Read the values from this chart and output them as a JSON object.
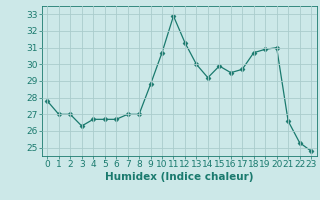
{
  "x": [
    0,
    1,
    2,
    3,
    4,
    5,
    6,
    7,
    8,
    9,
    10,
    11,
    12,
    13,
    14,
    15,
    16,
    17,
    18,
    19,
    20,
    21,
    22,
    23
  ],
  "y": [
    27.8,
    27.0,
    27.0,
    26.3,
    26.7,
    26.7,
    26.7,
    27.0,
    27.0,
    28.8,
    30.7,
    32.9,
    31.3,
    30.0,
    29.2,
    29.9,
    29.5,
    29.7,
    30.7,
    30.9,
    31.0,
    26.6,
    25.3,
    24.8
  ],
  "line_color": "#1a7a6e",
  "marker": "D",
  "marker_size": 2.5,
  "bg_color": "#cce8e8",
  "grid_color": "#aacccc",
  "xlabel": "Humidex (Indice chaleur)",
  "ylim": [
    24.5,
    33.5
  ],
  "xlim": [
    -0.5,
    23.5
  ],
  "yticks": [
    25,
    26,
    27,
    28,
    29,
    30,
    31,
    32,
    33
  ],
  "xticks": [
    0,
    1,
    2,
    3,
    4,
    5,
    6,
    7,
    8,
    9,
    10,
    11,
    12,
    13,
    14,
    15,
    16,
    17,
    18,
    19,
    20,
    21,
    22,
    23
  ],
  "tick_color": "#1a7a6e",
  "tick_fontsize": 6.5,
  "xlabel_fontsize": 7.5
}
